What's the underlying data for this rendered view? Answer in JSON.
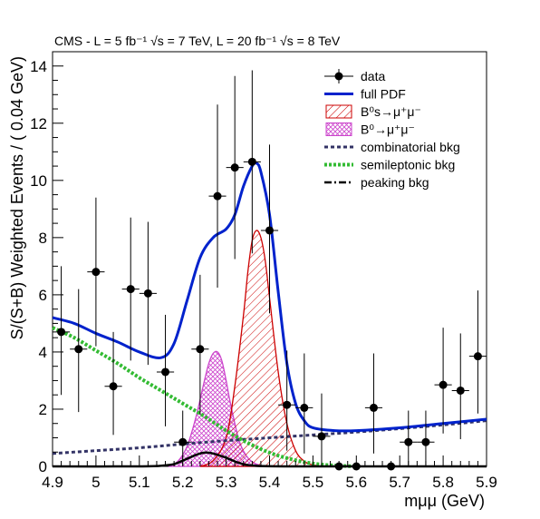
{
  "chart_data": {
    "type": "scatter",
    "title": "CMS - L = 5 fb⁻¹ √s = 7 TeV, L = 20 fb⁻¹ √s = 8 TeV",
    "xlabel": "mμμ (GeV)",
    "ylabel": "S/(S+B) Weighted Events / ( 0.04 GeV)",
    "xlim": [
      4.9,
      5.9
    ],
    "ylim": [
      0,
      14.5
    ],
    "xticks": [
      "4.9",
      "5",
      "5.1",
      "5.2",
      "5.3",
      "5.4",
      "5.5",
      "5.6",
      "5.7",
      "5.8",
      "5.9"
    ],
    "yticks": [
      "0",
      "2",
      "4",
      "6",
      "8",
      "10",
      "12",
      "14"
    ],
    "legend_position": "top-right",
    "legend": [
      "data",
      "full PDF",
      "B⁰s→μ⁺μ⁻",
      "B⁰→μ⁺μ⁻",
      "combinatorial bkg",
      "semileptonic bkg",
      "peaking bkg"
    ],
    "data": {
      "name": "data",
      "x": [
        4.92,
        4.96,
        5.0,
        5.04,
        5.08,
        5.12,
        5.16,
        5.2,
        5.24,
        5.28,
        5.32,
        5.36,
        5.4,
        5.44,
        5.48,
        5.52,
        5.56,
        5.6,
        5.64,
        5.68,
        5.72,
        5.76,
        5.8,
        5.84,
        5.88
      ],
      "y": [
        4.7,
        4.1,
        6.8,
        2.8,
        6.2,
        6.05,
        3.3,
        0.85,
        4.1,
        9.45,
        10.45,
        10.65,
        8.25,
        2.15,
        2.05,
        1.05,
        0.0,
        0.0,
        2.05,
        0.0,
        0.85,
        0.85,
        2.85,
        2.65,
        3.85
      ],
      "yerr_low": [
        2.2,
        2.2,
        2.6,
        1.7,
        2.5,
        2.5,
        1.9,
        0.8,
        2.3,
        3.2,
        3.2,
        3.2,
        2.9,
        1.6,
        1.6,
        1.0,
        0.0,
        0.0,
        1.6,
        0.0,
        0.8,
        0.8,
        1.7,
        1.7,
        2.0
      ],
      "yerr_high": [
        2.3,
        2.1,
        2.6,
        1.9,
        2.5,
        2.5,
        2.0,
        1.1,
        2.6,
        3.2,
        3.2,
        3.2,
        3.0,
        1.9,
        1.9,
        1.5,
        0.0,
        0.0,
        1.9,
        0.0,
        1.1,
        1.1,
        2.0,
        2.0,
        2.3
      ]
    },
    "series": [
      {
        "name": "full PDF",
        "color": "#0022cc",
        "x": [
          4.9,
          4.95,
          5.0,
          5.05,
          5.1,
          5.15,
          5.18,
          5.21,
          5.24,
          5.27,
          5.3,
          5.32,
          5.34,
          5.36,
          5.37,
          5.38,
          5.4,
          5.42,
          5.44,
          5.46,
          5.48,
          5.5,
          5.55,
          5.6,
          5.7,
          5.8,
          5.9
        ],
        "y": [
          5.2,
          5.0,
          4.65,
          4.35,
          4.0,
          3.8,
          4.3,
          5.8,
          7.3,
          8.0,
          8.3,
          8.8,
          9.8,
          10.5,
          10.6,
          10.3,
          8.8,
          6.1,
          3.6,
          2.2,
          1.6,
          1.35,
          1.25,
          1.25,
          1.35,
          1.5,
          1.65
        ]
      },
      {
        "name": "B⁰s→μ⁺μ⁻",
        "color": "#cc0000",
        "x": [
          5.24,
          5.27,
          5.3,
          5.32,
          5.34,
          5.35,
          5.36,
          5.37,
          5.38,
          5.39,
          5.4,
          5.42,
          5.44,
          5.46,
          5.48,
          5.5,
          5.52
        ],
        "y": [
          0.0,
          0.2,
          1.0,
          2.8,
          5.3,
          6.8,
          7.9,
          8.25,
          8.0,
          7.2,
          5.9,
          3.3,
          1.5,
          0.55,
          0.18,
          0.05,
          0.0
        ]
      },
      {
        "name": "B⁰→μ⁺μ⁻",
        "color": "#cc44cc",
        "x": [
          5.17,
          5.19,
          5.21,
          5.23,
          5.25,
          5.26,
          5.27,
          5.28,
          5.29,
          5.3,
          5.31,
          5.33,
          5.35,
          5.37,
          5.39
        ],
        "y": [
          0.0,
          0.2,
          0.7,
          1.7,
          3.0,
          3.6,
          3.95,
          4.0,
          3.7,
          3.0,
          2.2,
          0.9,
          0.3,
          0.08,
          0.0
        ]
      },
      {
        "name": "combinatorial bkg",
        "color": "#333366",
        "x": [
          4.9,
          5.0,
          5.1,
          5.2,
          5.3,
          5.4,
          5.5,
          5.6,
          5.7,
          5.8,
          5.9
        ],
        "y": [
          0.45,
          0.55,
          0.65,
          0.78,
          0.9,
          1.0,
          1.1,
          1.2,
          1.32,
          1.45,
          1.6
        ]
      },
      {
        "name": "semileptonic bkg",
        "color": "#33bb33",
        "x": [
          4.9,
          4.95,
          5.0,
          5.05,
          5.1,
          5.15,
          5.2,
          5.25,
          5.3,
          5.35,
          5.4,
          5.45,
          5.5,
          5.55,
          5.6
        ],
        "y": [
          4.85,
          4.5,
          4.05,
          3.6,
          3.1,
          2.65,
          2.2,
          1.75,
          1.25,
          0.82,
          0.48,
          0.25,
          0.1,
          0.03,
          0.0
        ]
      },
      {
        "name": "peaking bkg",
        "color": "#000000",
        "x": [
          4.9,
          5.1,
          5.17,
          5.2,
          5.23,
          5.25,
          5.27,
          5.3,
          5.33,
          5.36,
          5.45,
          5.9
        ],
        "y": [
          0.0,
          0.0,
          0.05,
          0.2,
          0.4,
          0.48,
          0.45,
          0.3,
          0.12,
          0.03,
          0.0,
          0.0
        ]
      }
    ]
  }
}
